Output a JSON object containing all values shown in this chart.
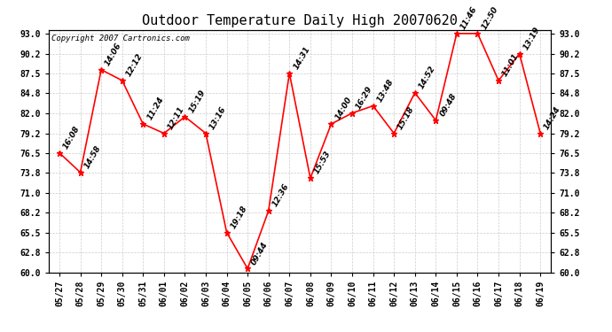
{
  "title": "Outdoor Temperature Daily High 20070620",
  "copyright": "Copyright 2007 Cartronics.com",
  "background_color": "#ffffff",
  "line_color": "#ff0000",
  "marker_color": "#ff0000",
  "grid_color": "#cccccc",
  "dates": [
    "05/27",
    "05/28",
    "05/29",
    "05/30",
    "05/31",
    "06/01",
    "06/02",
    "06/03",
    "06/04",
    "06/05",
    "06/06",
    "06/07",
    "06/08",
    "06/09",
    "06/10",
    "06/11",
    "06/12",
    "06/13",
    "06/14",
    "06/15",
    "06/16",
    "06/17",
    "06/18",
    "06/19"
  ],
  "values": [
    76.5,
    73.8,
    88.0,
    86.5,
    80.5,
    79.2,
    81.5,
    79.2,
    65.5,
    60.5,
    68.5,
    87.5,
    73.0,
    80.5,
    82.0,
    83.0,
    79.2,
    84.8,
    81.0,
    93.0,
    93.0,
    86.5,
    90.2,
    79.2
  ],
  "labels": [
    "16:08",
    "14:58",
    "14:06",
    "12:12",
    "11:24",
    "12:11",
    "15:19",
    "13:16",
    "19:18",
    "09:44",
    "12:36",
    "14:31",
    "15:53",
    "14:00",
    "16:29",
    "13:48",
    "15:18",
    "14:52",
    "09:48",
    "11:46",
    "12:50",
    "11:01",
    "13:19",
    "14:24"
  ],
  "ylim_min": 60.0,
  "ylim_max": 93.5,
  "yticks": [
    60.0,
    62.8,
    65.5,
    68.2,
    71.0,
    73.8,
    76.5,
    79.2,
    82.0,
    84.8,
    87.5,
    90.2,
    93.0
  ],
  "title_fontsize": 11,
  "label_fontsize": 6.5,
  "tick_fontsize": 7,
  "copyright_fontsize": 6.5
}
